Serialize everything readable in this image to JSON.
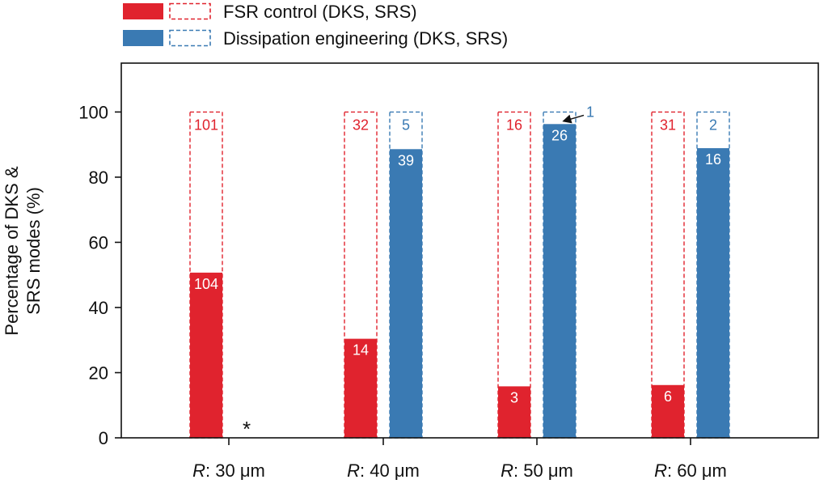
{
  "chart_data": {
    "type": "bar",
    "categories": [
      "R: 30 μm",
      "R: 40 μm",
      "R: 50 μm",
      "R: 60 μm"
    ],
    "category_parts": [
      {
        "var": "R",
        "value": ": 30 μm"
      },
      {
        "var": "R",
        "value": ": 40 μm"
      },
      {
        "var": "R",
        "value": ": 50 μm"
      },
      {
        "var": "R",
        "value": ": 60 μm"
      }
    ],
    "ylabel_lines": [
      "Percentage of DKS &",
      "SRS modes (%)"
    ],
    "ylim": [
      0,
      115
    ],
    "yticks": [
      0,
      20,
      40,
      60,
      80,
      100
    ],
    "legend": {
      "placement": "top-left",
      "entries": [
        {
          "label": "FSR control (DKS, SRS)",
          "color": "#e0232e"
        },
        {
          "label": "Dissipation engineering (DKS, SRS)",
          "color": "#3a7ab3"
        }
      ]
    },
    "series": [
      {
        "name": "FSR control (DKS, SRS)",
        "color": "#e0232e",
        "dks_percent": [
          50.7,
          30.4,
          15.8,
          16.2
        ],
        "dks_count": [
          "104",
          "14",
          "3",
          "6"
        ],
        "srs_count": [
          "101",
          "32",
          "16",
          "31"
        ]
      },
      {
        "name": "Dissipation engineering (DKS, SRS)",
        "color": "#3a7ab3",
        "dks_percent": [
          null,
          88.6,
          96.3,
          88.9
        ],
        "dks_count": [
          null,
          "39",
          "26",
          "16"
        ],
        "srs_count": [
          null,
          "5",
          "1",
          "2"
        ]
      }
    ],
    "annotations": [
      {
        "text": "*",
        "category": 0,
        "series": 1,
        "meaning": "no dissipation-engineering bar"
      }
    ]
  }
}
